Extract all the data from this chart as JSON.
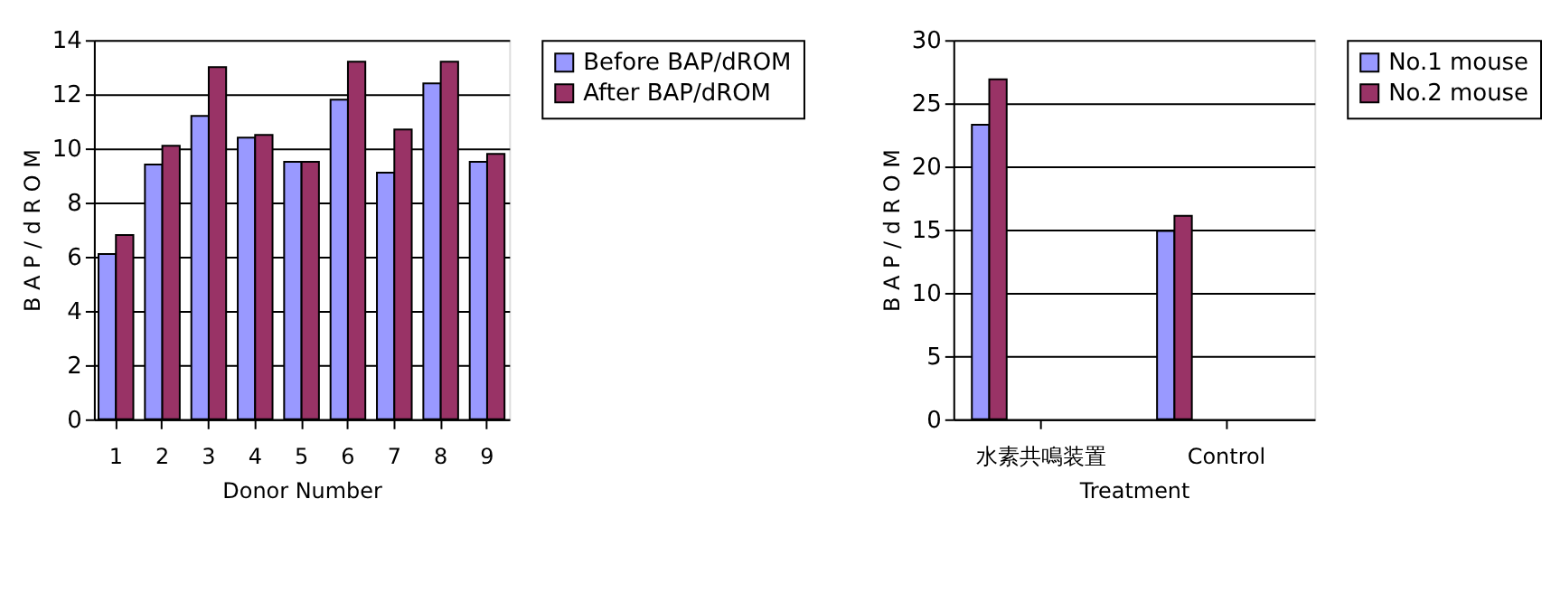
{
  "chart_data": [
    {
      "type": "bar",
      "xlabel": "Donor Number",
      "ylabel": "B A P / d R O M",
      "categories": [
        "1",
        "2",
        "3",
        "4",
        "5",
        "6",
        "7",
        "8",
        "9"
      ],
      "series": [
        {
          "name": "Before BAP/dROM",
          "color": "#9999ff",
          "values": [
            6.1,
            9.4,
            11.2,
            10.4,
            9.5,
            11.8,
            9.1,
            12.4,
            9.5
          ]
        },
        {
          "name": "After BAP/dROM",
          "color": "#993366",
          "values": [
            6.8,
            10.1,
            13.0,
            10.5,
            9.5,
            13.2,
            10.7,
            13.2,
            9.8
          ]
        }
      ],
      "ylim": [
        0,
        14
      ],
      "yticks": [
        0,
        2,
        4,
        6,
        8,
        10,
        12,
        14
      ],
      "grid": "y",
      "legend": "right"
    },
    {
      "type": "bar",
      "xlabel": "Treatment",
      "ylabel": "B A P / d R O M",
      "categories": [
        "水素共鳴装置",
        "Control"
      ],
      "series": [
        {
          "name": "No.1 mouse",
          "color": "#9999ff",
          "values": [
            23.3,
            14.9
          ]
        },
        {
          "name": "No.2 mouse",
          "color": "#993366",
          "values": [
            26.9,
            16.1
          ]
        }
      ],
      "ylim": [
        0,
        30
      ],
      "yticks": [
        0,
        5,
        10,
        15,
        20,
        25,
        30
      ],
      "grid": "y",
      "legend": "right"
    }
  ]
}
